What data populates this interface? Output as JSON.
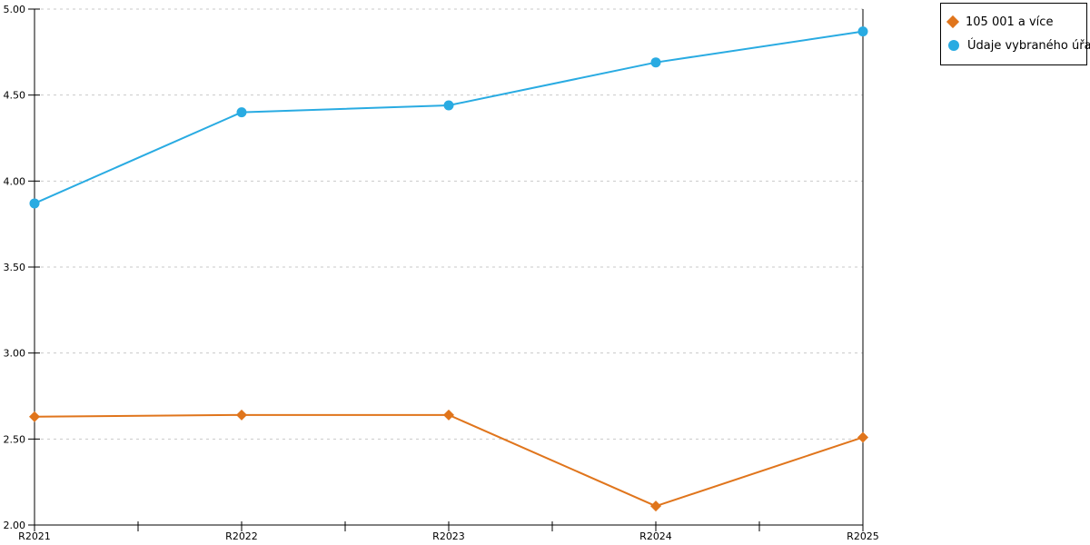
{
  "chart_data": {
    "type": "line",
    "categories": [
      "R2021",
      "R2022",
      "R2023",
      "R2024",
      "R2025"
    ],
    "series": [
      {
        "name": "105 001 a více",
        "color": "#E0751C",
        "marker": "diamond",
        "values": [
          2.63,
          2.64,
          2.64,
          2.11,
          2.51
        ]
      },
      {
        "name": "Údaje vybraného úřadu",
        "color": "#29ABE2",
        "marker": "circle",
        "values": [
          3.87,
          4.4,
          4.44,
          4.69,
          4.87
        ]
      }
    ],
    "title": "",
    "xlabel": "",
    "ylabel": "",
    "ylim": [
      2.0,
      5.0
    ],
    "ytick_step": 0.5,
    "ytick_labels": [
      "2.00",
      "2.50",
      "3.00",
      "3.50",
      "4.00",
      "4.50",
      "5.00"
    ],
    "grid": "horizontal-dotted",
    "grid_color": "#c9c9c9",
    "axis_color": "#000000",
    "legend_position": "top-right-outside",
    "legend_border_color": "#000000"
  }
}
